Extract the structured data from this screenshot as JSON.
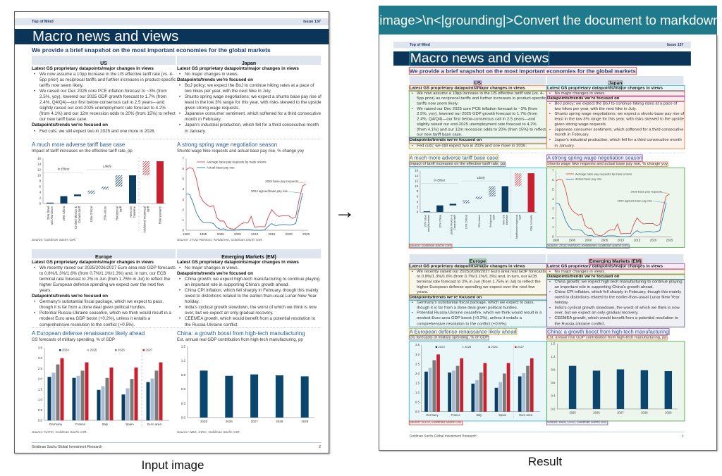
{
  "banner": "<image>\\n<|grounding|>Convert the document to markdown.",
  "captions": {
    "input": "Input image",
    "result": "Result"
  },
  "arrow_icon": "right-arrow",
  "document": {
    "header": {
      "left": "Top of Mind",
      "right": "Issue 137"
    },
    "title": "Macro news and views",
    "subtitle": "We provide a brief snapshot on the most important economies for the global markets",
    "sections": [
      {
        "name": "US",
        "parts": [
          {
            "heading": "Latest GS proprietary datapoints/major changes in views",
            "bullets": [
              "We now assume a 10pp increase in the US effective tariff rate (vs. 4-5pp prior) as reciprocal tariffs and further increases in product-specific tariffs now seem likely.",
              "We raised our Dec 2025 core PCE inflation forecast to ~3% (from 2.5%, yoy), lowered our 2025 GDP growth forecast to 1.7% (from 2.4%, Q4/Q4)—our first below-consensus call in 2.5 years—and slightly raised our end-2025 unemployment rate forecast to 4.2% (from 4.1%) and our 12m recession odds to 20% (from 15%) to reflect our new tariff base case."
            ]
          },
          {
            "heading": "Datapoints/trends we're focused on",
            "bullets": [
              "Fed cuts; we still expect two in 2025 and one more in 2026."
            ]
          }
        ]
      },
      {
        "name": "Japan",
        "parts": [
          {
            "heading": "Latest GS proprietary datapoints/major changes in views",
            "bullets": [
              "No major changes in views."
            ]
          },
          {
            "heading": "Datapoints/trends we're focused on",
            "bullets": [
              "BoJ policy; we expect the BoJ to continue hiking rates at a pace of two hikes per year, with the next hike in July.",
              "Shunto spring wage negotiations; we expect a shunto base pay rise of least in the low 3% range for this year, with risks skewed to the upside given strong wage requests.",
              "Japanese consumer sentiment, which softened for a third consecutive month in February.",
              "Japan's industrial production, which fell for a third consecutive month in January."
            ]
          }
        ]
      },
      {
        "name": "Europe",
        "parts": [
          {
            "heading": "Latest GS proprietary datapoints/major changes in views",
            "bullets": [
              "We recently raised our 2025/2026/2027 Euro area real GDP forecasts to 0.8%/1.3%/1.6% (from 0.7%/1.1%/1.3%) and, in turn, our ECB terminal rate forecast to 2% in Jun (from 1.75% in Jul) to reflect the higher European defense spending we expect over the next few years."
            ]
          },
          {
            "heading": "Datapoints/trends we're focused on",
            "bullets": [
              "Germany's substantial fiscal package, which we expect to pass, though it is far from a done deal given political hurdles.",
              "Potential Russia-Ukraine ceasefire, which we think would result in a modest Euro area GDP boost (+0.2%), unless it entails a comprehensive resolution to the conflict (+0.5%)."
            ]
          }
        ]
      },
      {
        "name": "Emerging Markets (EM)",
        "parts": [
          {
            "heading": "Latest GS proprietary datapoints/major changes in views",
            "bullets": [
              "No major changes in views."
            ]
          },
          {
            "heading": "Datapoints/trends we're focused on",
            "bullets": [
              "China growth; we expect high-tech manufacturing to continue playing an important role in supporting China's growth ahead.",
              "China CPI inflation, which fell sharply in February, though this mainly owed to distortions related to the earlier-than-usual Lunar New Year holiday.",
              "India's cyclical growth slowdown, the worst of which we think is now over, but we expect an only-gradual recovery.",
              "CEEMEA growth, which would benefit from a potential resolution to the Russia-Ukraine conflict."
            ]
          }
        ]
      }
    ],
    "footer": {
      "left": "Goldman Sachs Global Investment Research",
      "page": "2"
    }
  },
  "chart_data": [
    {
      "type": "bar",
      "title": "A much more adverse tariff base case",
      "subtitle": "Impact of tariff increases on the effective tariff rate, pp",
      "ylim": [
        0,
        16
      ],
      "yticks": [
        0,
        2,
        4,
        6,
        8,
        10,
        12,
        14,
        16
      ],
      "categories": [
        "25% Steel and Aluminum",
        "20% China",
        "Limited Mexico & Canada tariff",
        "10% Critical",
        "25% Autos",
        "Reciprocal tariff",
        "New GS baseline",
        "Additional reciprocal tariff",
        "Risk scenario"
      ],
      "ranges": [
        [
          0,
          0.3
        ],
        [
          0,
          2.6
        ],
        [
          2.6,
          3.2
        ],
        [
          3.4,
          4.6
        ],
        [
          5,
          6
        ],
        [
          6,
          10
        ],
        [
          0,
          10
        ],
        [
          10,
          15
        ],
        [
          0,
          15
        ]
      ],
      "styles": [
        "solid-navy",
        "solid-navy",
        "solid-navy",
        "hatch-navy",
        "hatch-navy",
        "hatch-navy",
        "solid-navy",
        "hatch-red",
        "solid-red"
      ],
      "annotations": [
        "In Effect",
        "Likely"
      ],
      "source": "Source: Goldman Sachs GIR."
    },
    {
      "type": "line",
      "title": "A strong spring wage negotiation season",
      "subtitle": "Shunto wage hike requests and actual base pay rise, % change yoy",
      "ylim": [
        0,
        7
      ],
      "xlim": [
        1990,
        2025
      ],
      "xticks": [
        1990,
        1995,
        2000,
        2005,
        2010,
        2015,
        2020,
        2025
      ],
      "yticks": [
        0,
        1,
        2,
        3,
        4,
        5,
        6,
        7
      ],
      "series": [
        {
          "name": "Average base pay requests by trade unions",
          "color": "#d6444a",
          "x0": 1990,
          "values": [
            5.9,
            6.1,
            6.0,
            5.0,
            3.4,
            2.8,
            2.5,
            2.3,
            2.4,
            1.2,
            0.9,
            0.9,
            0.3,
            0.15,
            0.1,
            0.3,
            0.6,
            0.75,
            0.7,
            1.35,
            0.3,
            0.35,
            0.35,
            0.35,
            1.3,
            2.0,
            1.6,
            1.35,
            1.4,
            1.4,
            1.4,
            1.15,
            1.3,
            3.0,
            4.3,
            4.5
          ]
        },
        {
          "name": "Actual base pay rise",
          "color": "#2d7aa5",
          "x0": 1990,
          "values": [
            3.55,
            3.5,
            2.7,
            1.7,
            1.1,
            0.75,
            0.75,
            0.75,
            0.65,
            0.25,
            0.1,
            0.15,
            0.0,
            0.0,
            0.0,
            0.05,
            0.1,
            0.1,
            0.1,
            0.05,
            0.0,
            0.0,
            0.0,
            0.05,
            0.4,
            0.65,
            0.45,
            0.5,
            0.55,
            0.55,
            0.5,
            0.55,
            0.65,
            2.1,
            3.6
          ]
        }
      ],
      "annotations": [
        "2025 base pay requests",
        "2024 agreed base pay rise"
      ],
      "source": "Source: JTUC-RENGO, Keidanren, Goldman Sachs GIR."
    },
    {
      "type": "bar",
      "title": "A European defense renaissance likely ahead",
      "subtitle": "GS forecasts of military spending, % of GDP",
      "ylim": [
        0,
        3.5
      ],
      "yticks": [
        0,
        0.5,
        1,
        1.5,
        2,
        2.5,
        3,
        3.5
      ],
      "categories": [
        "Germany",
        "France",
        "Italy",
        "Spain",
        "Euro area"
      ],
      "series": [
        {
          "name": "2024",
          "color": "#0b3d63",
          "values": [
            2.1,
            2.05,
            1.47,
            1.25,
            1.85
          ]
        },
        {
          "name": "2025",
          "color": "#a9bcd6",
          "values": [
            2.3,
            2.15,
            1.65,
            1.55,
            2.02
          ]
        },
        {
          "name": "2026",
          "color": "#7a7a7a",
          "values": [
            2.7,
            2.4,
            2.05,
            2.0,
            2.4
          ]
        },
        {
          "name": "2027",
          "color": "#c8202f",
          "values": [
            3.0,
            2.8,
            2.55,
            2.55,
            2.8
          ]
        }
      ],
      "legend": "top",
      "source": "Source: NATO, Goldman Sachs GIR."
    },
    {
      "type": "bar",
      "title": "China: a growth boost from high-tech manufacturing",
      "subtitle": "Est. annual real GDP contribution from high-tech manufacturing, pp",
      "ylim": [
        0,
        1.5
      ],
      "yticks": [
        0,
        0.3,
        0.6,
        0.9,
        1.2,
        1.5
      ],
      "categories": [
        "2025",
        "2026",
        "2027",
        "2028",
        "2029"
      ],
      "values": [
        0.99,
        0.88,
        0.91,
        0.89,
        0.87
      ],
      "color": "#0b466e",
      "source": "Source: NBS, CEIC, Goldman Sachs GIR."
    }
  ],
  "grounding_colors": [
    "#3fb8c9",
    "#e0524f",
    "#9a5fc0",
    "#e08a4f",
    "#58b05a",
    "#6a6f9a",
    "#c9b94a",
    "#8a8a8a"
  ]
}
